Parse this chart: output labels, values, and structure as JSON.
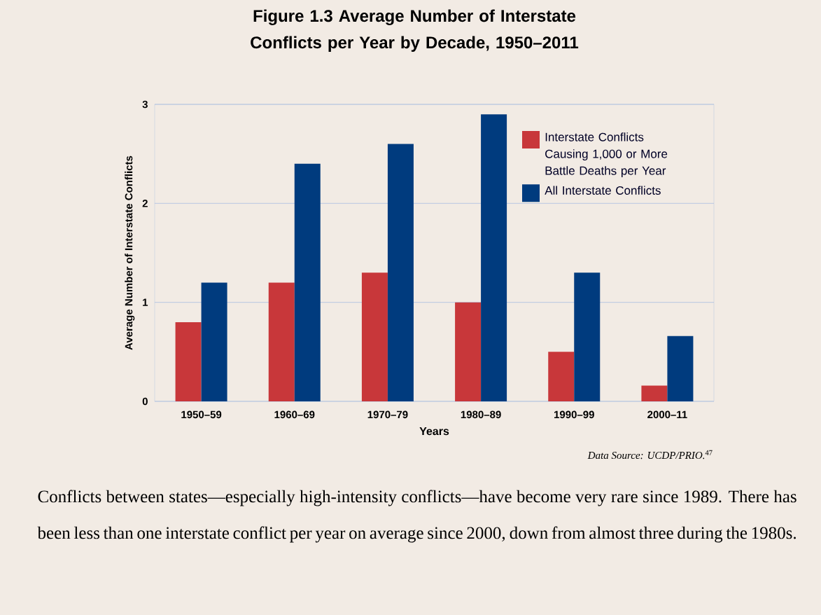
{
  "chart_data": {
    "type": "bar",
    "title": "Figure 1.3 Average Number of Interstate Conflicts per Year by Decade, 1950–2011",
    "categories": [
      "1950–59",
      "1960–69",
      "1970–79",
      "1980–89",
      "1990–99",
      "2000–11"
    ],
    "series": [
      {
        "name": "Interstate Conflicts Causing 1,000 or More Battle Deaths per Year",
        "color": "#c8373a",
        "values": [
          0.8,
          1.2,
          1.3,
          1.0,
          0.5,
          0.16
        ]
      },
      {
        "name": "All Interstate Conflicts",
        "color": "#003b7e",
        "values": [
          1.2,
          2.4,
          2.6,
          2.9,
          1.3,
          0.66
        ]
      }
    ],
    "xlabel": "Years",
    "ylabel": "Average Number of Interstate Conflicts",
    "ylim": [
      0,
      3
    ],
    "yticks": [
      0,
      1,
      2,
      3
    ],
    "grid": "y",
    "legend": "top right",
    "annotations": [
      "*Data Source: UCDP/PRIO.*$^{47}$",
      "Conflicts between states—especially high-intensity conflicts—have become very rare since 1989. There has been less than one interstate conflict per year on average since 2000, down from almost three during the 1980s."
    ]
  }
}
